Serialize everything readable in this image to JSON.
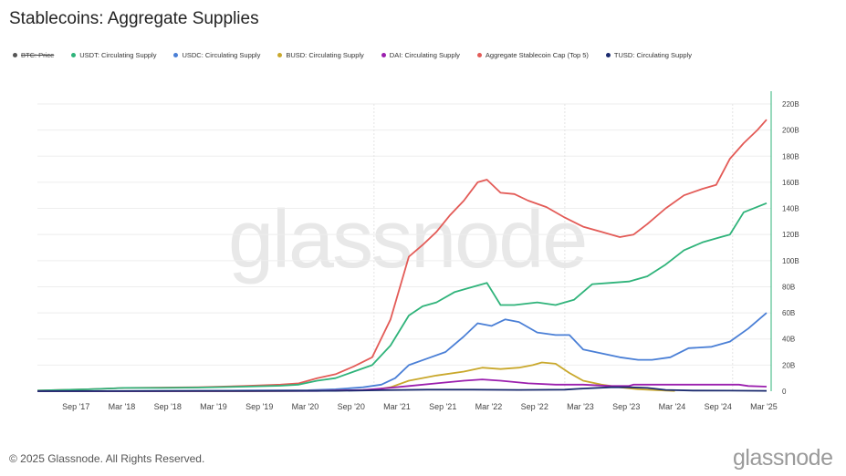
{
  "title": "Stablecoins: Aggregate Supplies",
  "footer": "© 2025 Glassnode. All Rights Reserved.",
  "brand": "glassnode",
  "watermark": "glassnode",
  "legend": [
    {
      "label": "BTC: Price",
      "color": "#555555",
      "struck": true
    },
    {
      "label": "USDT: Circulating Supply",
      "color": "#2fb37a",
      "struck": false
    },
    {
      "label": "USDC: Circulating Supply",
      "color": "#4a7fd6",
      "struck": false
    },
    {
      "label": "BUSD: Circulating Supply",
      "color": "#c9a82c",
      "struck": false
    },
    {
      "label": "DAI: Circulating Supply",
      "color": "#9b1fae",
      "struck": false
    },
    {
      "label": "Aggregate Stablecoin Cap (Top 5)",
      "color": "#e35b57",
      "struck": false
    },
    {
      "label": "TUSD: Circulating Supply",
      "color": "#1a2a6e",
      "struck": false
    }
  ],
  "chart_data": {
    "type": "line",
    "title": "Stablecoins: Aggregate Supplies",
    "xlim": [
      2017.25,
      2025.25
    ],
    "ylim": [
      0,
      220
    ],
    "y_unit": "B",
    "y_ticks": [
      {
        "value": 0,
        "label": "0"
      },
      {
        "value": 20,
        "label": "20B"
      },
      {
        "value": 40,
        "label": "40B"
      },
      {
        "value": 60,
        "label": "60B"
      },
      {
        "value": 80,
        "label": "80B"
      },
      {
        "value": 100,
        "label": "100B"
      },
      {
        "value": 120,
        "label": "120B"
      },
      {
        "value": 140,
        "label": "140B"
      },
      {
        "value": 160,
        "label": "160B"
      },
      {
        "value": 180,
        "label": "180B"
      },
      {
        "value": 200,
        "label": "200B"
      },
      {
        "value": 220,
        "label": "220B"
      }
    ],
    "x_ticks": [
      {
        "value": 2017.67,
        "label": "Sep '17"
      },
      {
        "value": 2018.17,
        "label": "Mar '18"
      },
      {
        "value": 2018.67,
        "label": "Sep '18"
      },
      {
        "value": 2019.17,
        "label": "Mar '19"
      },
      {
        "value": 2019.67,
        "label": "Sep '19"
      },
      {
        "value": 2020.17,
        "label": "Mar '20"
      },
      {
        "value": 2020.67,
        "label": "Sep '20"
      },
      {
        "value": 2021.17,
        "label": "Mar '21"
      },
      {
        "value": 2021.67,
        "label": "Sep '21"
      },
      {
        "value": 2022.17,
        "label": "Mar '22"
      },
      {
        "value": 2022.67,
        "label": "Sep '22"
      },
      {
        "value": 2023.17,
        "label": "Mar '23"
      },
      {
        "value": 2023.67,
        "label": "Sep '23"
      },
      {
        "value": 2024.17,
        "label": "Mar '24"
      },
      {
        "value": 2024.67,
        "label": "Sep '24"
      },
      {
        "value": 2025.17,
        "label": "Mar '25"
      }
    ],
    "grid": true,
    "series": [
      {
        "name": "Aggregate Stablecoin Cap (Top 5)",
        "color": "#e35b57",
        "x": [
          2017.25,
          2017.8,
          2018.2,
          2018.6,
          2019.0,
          2019.5,
          2019.9,
          2020.1,
          2020.3,
          2020.5,
          2020.7,
          2020.9,
          2021.1,
          2021.3,
          2021.45,
          2021.6,
          2021.75,
          2021.9,
          2022.05,
          2022.15,
          2022.3,
          2022.45,
          2022.6,
          2022.8,
          2023.0,
          2023.2,
          2023.4,
          2023.6,
          2023.75,
          2023.9,
          2024.1,
          2024.3,
          2024.5,
          2024.65,
          2024.8,
          2024.95,
          2025.1,
          2025.2
        ],
        "values": [
          0.5,
          1.5,
          2.5,
          2.8,
          3,
          4,
          5,
          6,
          10,
          13,
          19,
          26,
          55,
          103,
          112,
          122,
          135,
          146,
          160,
          162,
          152,
          151,
          146,
          141,
          133,
          126,
          122,
          118,
          120,
          128,
          140,
          150,
          155,
          158,
          178,
          190,
          200,
          208
        ]
      },
      {
        "name": "USDT: Circulating Supply",
        "color": "#2fb37a",
        "x": [
          2017.25,
          2017.8,
          2018.2,
          2018.6,
          2019.0,
          2019.5,
          2019.9,
          2020.1,
          2020.3,
          2020.5,
          2020.7,
          2020.9,
          2021.1,
          2021.3,
          2021.45,
          2021.6,
          2021.8,
          2022.0,
          2022.15,
          2022.3,
          2022.45,
          2022.7,
          2022.9,
          2023.1,
          2023.3,
          2023.5,
          2023.7,
          2023.9,
          2024.1,
          2024.3,
          2024.5,
          2024.7,
          2024.8,
          2024.95,
          2025.2
        ],
        "values": [
          0.5,
          1.5,
          2.5,
          2.5,
          2.8,
          3.5,
          4.2,
          5,
          8,
          10,
          15,
          20,
          35,
          58,
          65,
          68,
          76,
          80,
          83,
          66,
          66,
          68,
          66,
          70,
          82,
          83,
          84,
          88,
          97,
          108,
          114,
          118,
          120,
          137,
          144
        ]
      },
      {
        "name": "USDC: Circulating Supply",
        "color": "#4a7fd6",
        "x": [
          2017.25,
          2018.6,
          2019.5,
          2020.2,
          2020.5,
          2020.8,
          2021.0,
          2021.15,
          2021.3,
          2021.5,
          2021.7,
          2021.9,
          2022.05,
          2022.2,
          2022.35,
          2022.5,
          2022.7,
          2022.9,
          2023.05,
          2023.2,
          2023.4,
          2023.6,
          2023.8,
          2023.95,
          2024.15,
          2024.35,
          2024.6,
          2024.8,
          2025.0,
          2025.2
        ],
        "values": [
          0,
          0.2,
          0.5,
          0.8,
          1.5,
          3,
          5,
          10,
          20,
          25,
          30,
          42,
          52,
          50,
          55,
          53,
          45,
          43,
          43,
          32,
          29,
          26,
          24,
          24,
          26,
          33,
          34,
          38,
          48,
          60
        ]
      },
      {
        "name": "BUSD: Circulating Supply",
        "color": "#c9a82c",
        "x": [
          2017.25,
          2019.5,
          2020.0,
          2020.5,
          2020.9,
          2021.1,
          2021.3,
          2021.6,
          2021.9,
          2022.1,
          2022.3,
          2022.5,
          2022.65,
          2022.75,
          2022.9,
          2023.05,
          2023.2,
          2023.4,
          2023.6,
          2023.8,
          2024.0,
          2024.2
        ],
        "values": [
          0,
          0,
          0.2,
          0.5,
          1,
          3,
          8,
          12,
          15,
          18,
          17,
          18,
          20,
          22,
          21,
          14,
          8,
          5,
          3,
          1.5,
          0.8,
          0.2
        ]
      },
      {
        "name": "DAI: Circulating Supply",
        "color": "#9b1fae",
        "x": [
          2017.25,
          2019.5,
          2020.3,
          2020.8,
          2021.0,
          2021.3,
          2021.6,
          2021.9,
          2022.1,
          2022.3,
          2022.6,
          2022.9,
          2023.2,
          2023.5,
          2023.7,
          2023.75,
          2024.0,
          2024.3,
          2024.6,
          2024.9,
          2025.0,
          2025.2
        ],
        "values": [
          0,
          0.1,
          0.2,
          1,
          2,
          4,
          6,
          8,
          9,
          8,
          6,
          5,
          5,
          4,
          4,
          5,
          5,
          5,
          5,
          5,
          4,
          3.5
        ]
      },
      {
        "name": "TUSD: Circulating Supply",
        "color": "#1a2a6e",
        "x": [
          2017.25,
          2018.0,
          2019.0,
          2020.5,
          2021.0,
          2021.5,
          2022.0,
          2022.5,
          2023.0,
          2023.2,
          2023.5,
          2023.7,
          2023.9,
          2024.1,
          2024.4,
          2024.8,
          2025.2
        ],
        "values": [
          0,
          0.1,
          0.2,
          0.3,
          0.8,
          1.2,
          1.2,
          1.0,
          1.2,
          2,
          3,
          3,
          2.5,
          1,
          0.5,
          0.4,
          0.3
        ]
      }
    ]
  }
}
